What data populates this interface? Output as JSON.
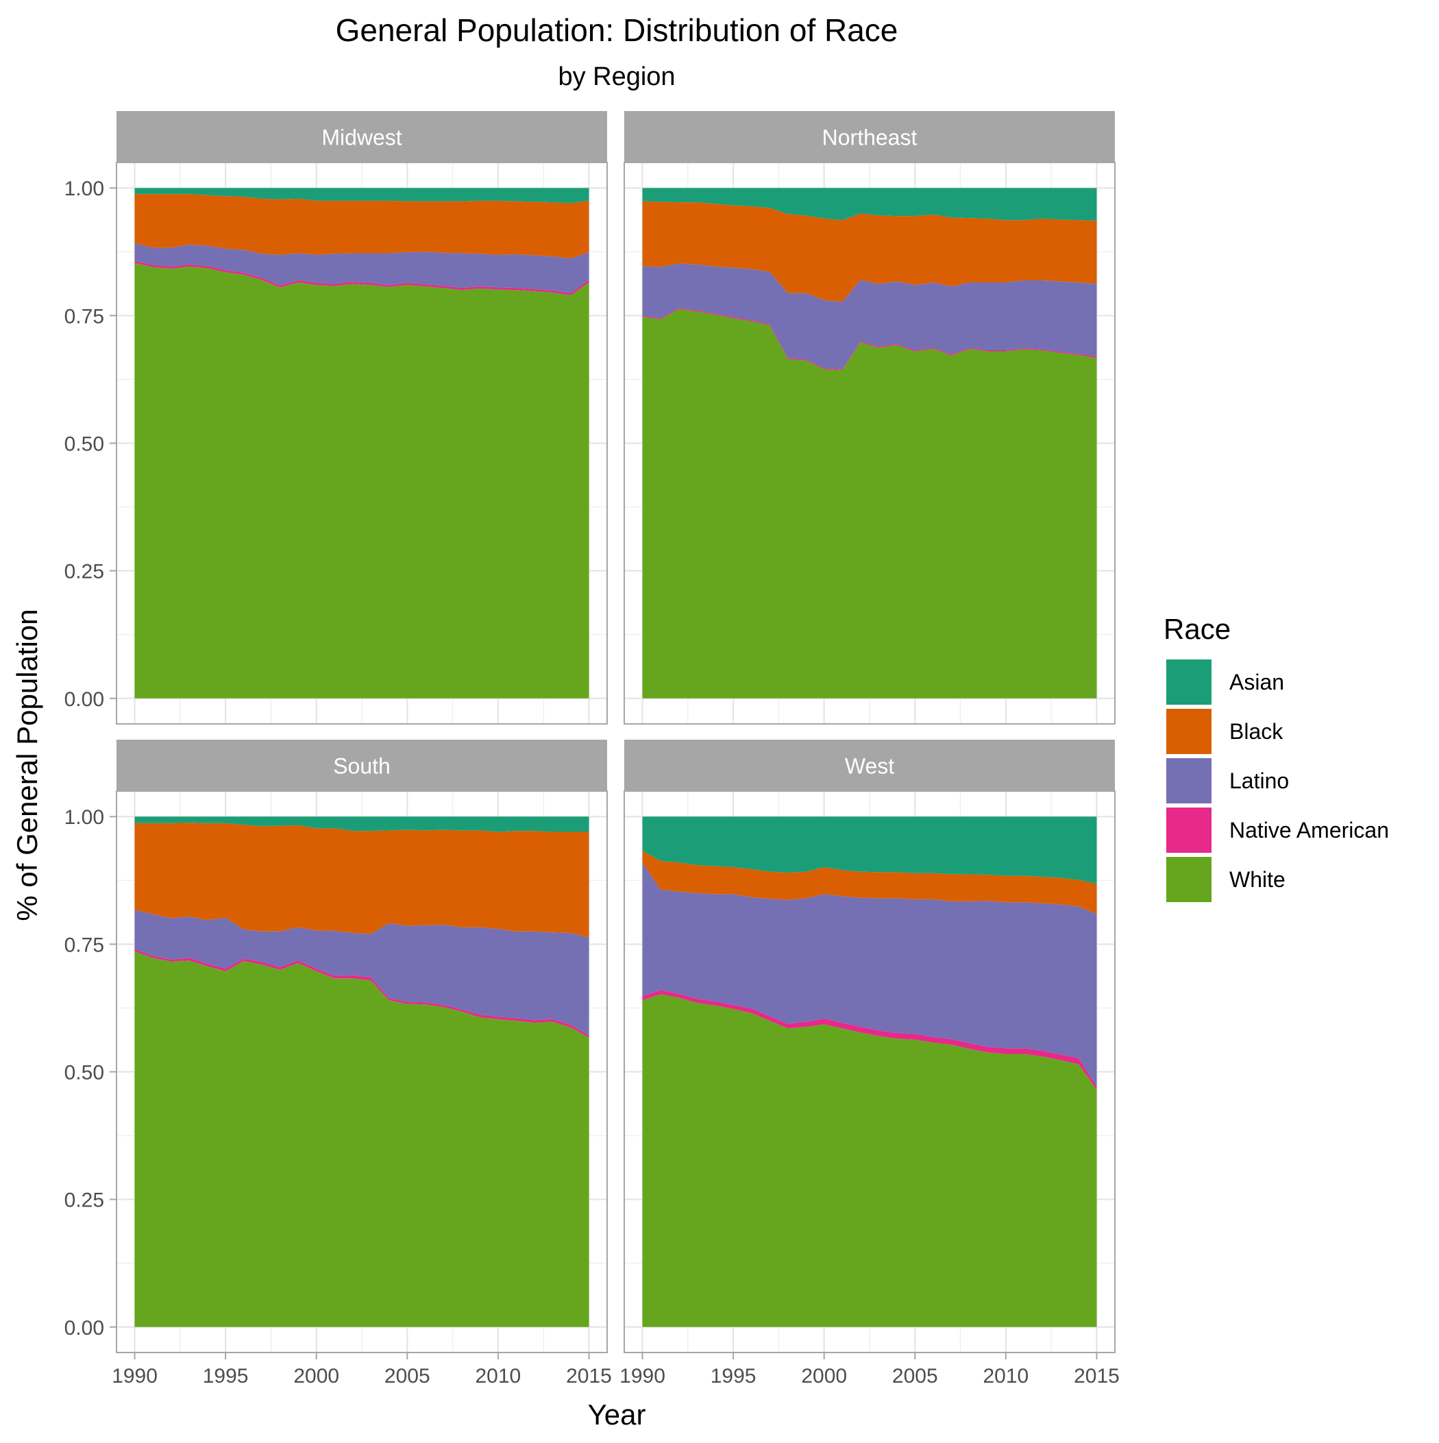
{
  "chart_data": {
    "type": "area",
    "title": "General Population: Distribution of Race",
    "subtitle": "by Region",
    "xlabel": "Year",
    "ylabel": "% of General Population",
    "xlim": [
      1989,
      2016
    ],
    "ylim": [
      -0.05,
      1.05
    ],
    "x_ticks": [
      1990,
      1995,
      2000,
      2005,
      2010,
      2015
    ],
    "x_tick_labels": [
      "1990",
      "1995",
      "2000",
      "2005",
      "2010",
      "2015"
    ],
    "y_ticks": [
      0,
      0.25,
      0.5,
      0.75,
      1.0
    ],
    "y_tick_labels": [
      "0.00",
      "0.25",
      "0.50",
      "0.75",
      "1.00"
    ],
    "grid": true,
    "legend": {
      "title": "Race",
      "position": "right",
      "entries": [
        "Asian",
        "Black",
        "Latino",
        "Native American",
        "White"
      ]
    },
    "colors": {
      "Asian": "#1B9E77",
      "Black": "#D95F02",
      "Latino": "#7570B3",
      "Native American": "#E7298A",
      "White": "#66A61E"
    },
    "stack_order": [
      "White",
      "Native American",
      "Latino",
      "Black",
      "Asian"
    ],
    "x": [
      1990,
      1991,
      1992,
      1993,
      1994,
      1995,
      1996,
      1997,
      1998,
      1999,
      2000,
      2001,
      2002,
      2003,
      2004,
      2005,
      2006,
      2007,
      2008,
      2009,
      2010,
      2011,
      2012,
      2013,
      2014,
      2015
    ],
    "panels": [
      {
        "name": "Midwest",
        "series": [
          {
            "name": "White",
            "values": [
              0.853,
              0.845,
              0.842,
              0.846,
              0.843,
              0.835,
              0.83,
              0.82,
              0.805,
              0.815,
              0.81,
              0.808,
              0.812,
              0.81,
              0.806,
              0.81,
              0.807,
              0.804,
              0.8,
              0.803,
              0.801,
              0.8,
              0.798,
              0.795,
              0.79,
              0.815
            ]
          },
          {
            "name": "Native American",
            "values": [
              0.004,
              0.004,
              0.004,
              0.004,
              0.004,
              0.004,
              0.004,
              0.004,
              0.004,
              0.004,
              0.004,
              0.004,
              0.004,
              0.004,
              0.004,
              0.004,
              0.004,
              0.004,
              0.004,
              0.004,
              0.004,
              0.004,
              0.004,
              0.004,
              0.004,
              0.005
            ]
          },
          {
            "name": "Latino",
            "values": [
              0.035,
              0.034,
              0.037,
              0.039,
              0.04,
              0.042,
              0.045,
              0.047,
              0.06,
              0.053,
              0.055,
              0.059,
              0.056,
              0.058,
              0.062,
              0.06,
              0.064,
              0.065,
              0.068,
              0.064,
              0.064,
              0.066,
              0.066,
              0.067,
              0.068,
              0.054
            ]
          },
          {
            "name": "Black",
            "values": [
              0.096,
              0.105,
              0.105,
              0.099,
              0.099,
              0.103,
              0.104,
              0.108,
              0.109,
              0.107,
              0.106,
              0.104,
              0.103,
              0.103,
              0.103,
              0.1,
              0.099,
              0.101,
              0.102,
              0.104,
              0.106,
              0.104,
              0.105,
              0.106,
              0.108,
              0.101
            ]
          },
          {
            "name": "Asian",
            "values": [
              0.012,
              0.012,
              0.012,
              0.012,
              0.014,
              0.016,
              0.017,
              0.021,
              0.022,
              0.021,
              0.025,
              0.025,
              0.025,
              0.025,
              0.025,
              0.026,
              0.026,
              0.026,
              0.026,
              0.025,
              0.025,
              0.026,
              0.027,
              0.028,
              0.03,
              0.025
            ]
          }
        ]
      },
      {
        "name": "Northeast",
        "series": [
          {
            "name": "White",
            "values": [
              0.748,
              0.743,
              0.763,
              0.758,
              0.752,
              0.745,
              0.739,
              0.731,
              0.665,
              0.662,
              0.645,
              0.643,
              0.698,
              0.687,
              0.692,
              0.68,
              0.685,
              0.672,
              0.685,
              0.68,
              0.68,
              0.684,
              0.682,
              0.677,
              0.673,
              0.667
            ]
          },
          {
            "name": "Native American",
            "values": [
              0.002,
              0.002,
              0.002,
              0.002,
              0.002,
              0.002,
              0.002,
              0.002,
              0.002,
              0.002,
              0.002,
              0.002,
              0.002,
              0.002,
              0.002,
              0.002,
              0.002,
              0.002,
              0.002,
              0.002,
              0.002,
              0.002,
              0.002,
              0.002,
              0.002,
              0.003
            ]
          },
          {
            "name": "Latino",
            "values": [
              0.097,
              0.1,
              0.087,
              0.09,
              0.092,
              0.097,
              0.1,
              0.103,
              0.127,
              0.13,
              0.133,
              0.132,
              0.12,
              0.123,
              0.123,
              0.128,
              0.128,
              0.133,
              0.128,
              0.133,
              0.133,
              0.133,
              0.135,
              0.138,
              0.14,
              0.142
            ]
          },
          {
            "name": "Black",
            "values": [
              0.127,
              0.128,
              0.12,
              0.122,
              0.123,
              0.122,
              0.123,
              0.125,
              0.155,
              0.152,
              0.16,
              0.16,
              0.13,
              0.134,
              0.128,
              0.135,
              0.133,
              0.135,
              0.126,
              0.125,
              0.122,
              0.118,
              0.121,
              0.121,
              0.122,
              0.124
            ]
          },
          {
            "name": "Asian",
            "values": [
              0.026,
              0.027,
              0.028,
              0.028,
              0.031,
              0.034,
              0.036,
              0.039,
              0.051,
              0.054,
              0.06,
              0.063,
              0.05,
              0.054,
              0.055,
              0.055,
              0.052,
              0.058,
              0.059,
              0.06,
              0.063,
              0.063,
              0.06,
              0.062,
              0.063,
              0.064
            ]
          }
        ]
      },
      {
        "name": "South",
        "series": [
          {
            "name": "White",
            "values": [
              0.736,
              0.723,
              0.716,
              0.718,
              0.707,
              0.697,
              0.717,
              0.71,
              0.7,
              0.713,
              0.697,
              0.683,
              0.683,
              0.679,
              0.64,
              0.633,
              0.632,
              0.627,
              0.618,
              0.607,
              0.603,
              0.6,
              0.596,
              0.598,
              0.587,
              0.567
            ]
          },
          {
            "name": "Native American",
            "values": [
              0.004,
              0.004,
              0.004,
              0.005,
              0.005,
              0.005,
              0.005,
              0.005,
              0.005,
              0.005,
              0.005,
              0.005,
              0.006,
              0.006,
              0.004,
              0.004,
              0.004,
              0.004,
              0.004,
              0.005,
              0.005,
              0.005,
              0.005,
              0.005,
              0.005,
              0.004
            ]
          },
          {
            "name": "Latino",
            "values": [
              0.077,
              0.082,
              0.081,
              0.081,
              0.085,
              0.1,
              0.057,
              0.06,
              0.07,
              0.065,
              0.075,
              0.088,
              0.083,
              0.085,
              0.147,
              0.149,
              0.151,
              0.157,
              0.161,
              0.171,
              0.172,
              0.17,
              0.174,
              0.17,
              0.18,
              0.192
            ]
          },
          {
            "name": "Black",
            "values": [
              0.17,
              0.178,
              0.186,
              0.184,
              0.19,
              0.185,
              0.205,
              0.206,
              0.207,
              0.2,
              0.2,
              0.201,
              0.2,
              0.202,
              0.182,
              0.188,
              0.186,
              0.186,
              0.19,
              0.19,
              0.19,
              0.197,
              0.197,
              0.197,
              0.198,
              0.207
            ]
          },
          {
            "name": "Asian",
            "values": [
              0.013,
              0.013,
              0.013,
              0.012,
              0.013,
              0.013,
              0.016,
              0.019,
              0.018,
              0.017,
              0.023,
              0.023,
              0.028,
              0.028,
              0.027,
              0.026,
              0.027,
              0.026,
              0.027,
              0.027,
              0.03,
              0.028,
              0.028,
              0.03,
              0.03,
              0.03
            ]
          }
        ]
      },
      {
        "name": "West",
        "series": [
          {
            "name": "White",
            "values": [
              0.64,
              0.652,
              0.645,
              0.635,
              0.63,
              0.623,
              0.615,
              0.6,
              0.585,
              0.588,
              0.593,
              0.585,
              0.577,
              0.57,
              0.565,
              0.563,
              0.557,
              0.553,
              0.545,
              0.538,
              0.535,
              0.535,
              0.53,
              0.523,
              0.515,
              0.465
            ]
          },
          {
            "name": "Native American",
            "values": [
              0.008,
              0.008,
              0.008,
              0.008,
              0.008,
              0.008,
              0.009,
              0.009,
              0.009,
              0.01,
              0.011,
              0.011,
              0.011,
              0.011,
              0.011,
              0.011,
              0.011,
              0.011,
              0.011,
              0.011,
              0.011,
              0.011,
              0.011,
              0.011,
              0.012,
              0.006
            ]
          },
          {
            "name": "Latino",
            "values": [
              0.262,
              0.197,
              0.2,
              0.207,
              0.21,
              0.217,
              0.218,
              0.23,
              0.243,
              0.242,
              0.244,
              0.248,
              0.253,
              0.259,
              0.264,
              0.264,
              0.27,
              0.27,
              0.278,
              0.286,
              0.286,
              0.286,
              0.289,
              0.294,
              0.297,
              0.338
            ]
          },
          {
            "name": "Black",
            "values": [
              0.023,
              0.056,
              0.057,
              0.055,
              0.055,
              0.053,
              0.055,
              0.053,
              0.053,
              0.052,
              0.053,
              0.051,
              0.051,
              0.051,
              0.051,
              0.051,
              0.051,
              0.053,
              0.053,
              0.051,
              0.052,
              0.052,
              0.052,
              0.052,
              0.052,
              0.059
            ]
          },
          {
            "name": "Asian",
            "values": [
              0.067,
              0.087,
              0.09,
              0.095,
              0.097,
              0.099,
              0.103,
              0.108,
              0.11,
              0.108,
              0.099,
              0.105,
              0.108,
              0.109,
              0.109,
              0.111,
              0.111,
              0.113,
              0.113,
              0.114,
              0.116,
              0.116,
              0.118,
              0.12,
              0.124,
              0.132
            ]
          }
        ]
      }
    ]
  }
}
